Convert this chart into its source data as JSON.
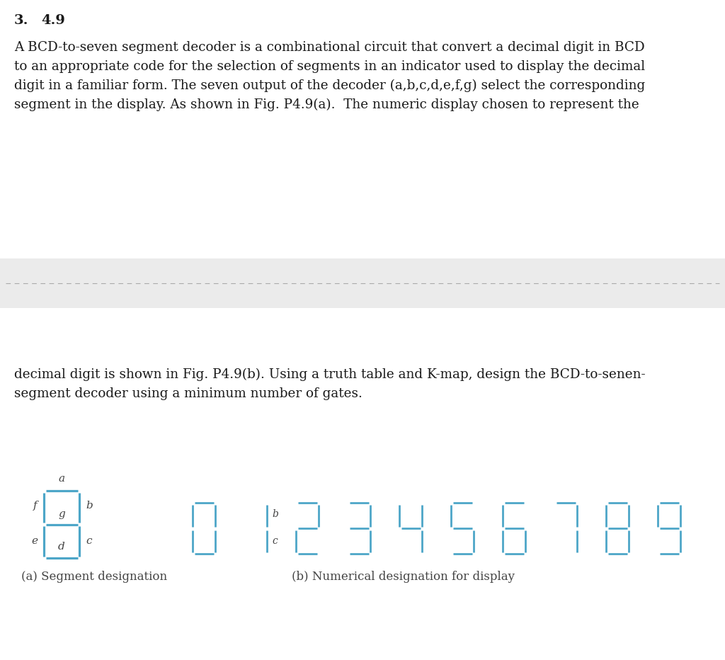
{
  "title_num": "3.",
  "title_prob": "4.9",
  "para1_lines": [
    "A BCD-to-seven segment decoder is a combinational circuit that convert a decimal digit in BCD",
    "to an appropriate code for the selection of segments in an indicator used to display the decimal",
    "digit in a familiar form. The seven output of the decoder (a,b,c,d,e,f,g) select the corresponding",
    "segment in the display. As shown in Fig. P4.9(a).  The numeric display chosen to represent the"
  ],
  "para2_lines": [
    "decimal digit is shown in Fig. P4.9(b). Using a truth table and K-map, design the BCD-to-senen-",
    "segment decoder using a minimum number of gates."
  ],
  "seg_color": "#4da6c8",
  "caption_a": "(a) Segment designation",
  "caption_b": "(b) Numerical designation for display",
  "text_color": "#1a1a1a",
  "gray_color": "#ebebeb",
  "divider_color": "#aaaaaa",
  "digit_segments": {
    "0": [
      1,
      1,
      1,
      1,
      1,
      1,
      0
    ],
    "1": [
      0,
      1,
      1,
      0,
      0,
      0,
      0
    ],
    "2": [
      1,
      1,
      0,
      1,
      1,
      0,
      1
    ],
    "3": [
      1,
      1,
      1,
      1,
      0,
      0,
      1
    ],
    "4": [
      0,
      1,
      1,
      0,
      0,
      1,
      1
    ],
    "5": [
      1,
      0,
      1,
      1,
      0,
      1,
      1
    ],
    "6": [
      1,
      0,
      1,
      1,
      1,
      1,
      1
    ],
    "7": [
      1,
      1,
      1,
      0,
      0,
      0,
      0
    ],
    "8": [
      1,
      1,
      1,
      1,
      1,
      1,
      1
    ],
    "9": [
      1,
      1,
      1,
      1,
      0,
      1,
      1
    ]
  }
}
